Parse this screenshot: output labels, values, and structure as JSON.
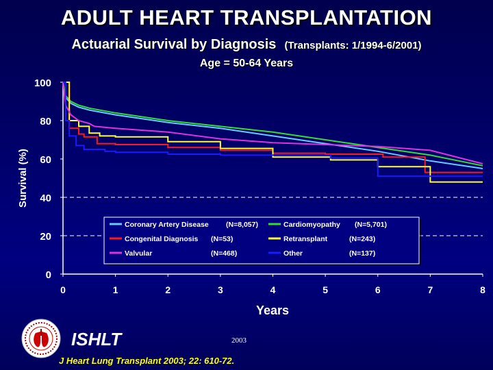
{
  "header": {
    "title": "ADULT HEART TRANSPLANTATION",
    "subtitle": "Actuarial Survival by Diagnosis",
    "subtitle_note": "(Transplants: 1/1994-6/2001)",
    "age": "Age = 50-64 Years"
  },
  "chart_data": {
    "type": "line",
    "title": "Actuarial Survival by Diagnosis",
    "xlabel": "Years",
    "ylabel": "Survival (%)",
    "xlim": [
      0,
      8
    ],
    "ylim": [
      0,
      100
    ],
    "x_ticks": [
      0,
      1,
      2,
      3,
      4,
      5,
      6,
      7,
      8
    ],
    "y_ticks": [
      0,
      20,
      40,
      60,
      80,
      100
    ],
    "grid": "dashed horizontal at 20 and 40",
    "legend_position": "bottom-center",
    "series": [
      {
        "name": "Coronary Artery Disease",
        "n_label": "(N=8,057)",
        "color": "#66ccff",
        "step": false,
        "points": [
          [
            0,
            100
          ],
          [
            0.05,
            92
          ],
          [
            0.15,
            89
          ],
          [
            0.3,
            87
          ],
          [
            0.5,
            85.5
          ],
          [
            1,
            83
          ],
          [
            2,
            79
          ],
          [
            3,
            76
          ],
          [
            4,
            72
          ],
          [
            5,
            68
          ],
          [
            6,
            64
          ],
          [
            7,
            59
          ],
          [
            8,
            55
          ]
        ]
      },
      {
        "name": "Cardiomyopathy",
        "n_label": "(N=5,701)",
        "color": "#33dd33",
        "step": false,
        "points": [
          [
            0,
            100
          ],
          [
            0.05,
            93
          ],
          [
            0.15,
            90
          ],
          [
            0.3,
            88
          ],
          [
            0.5,
            86.5
          ],
          [
            1,
            84
          ],
          [
            2,
            80
          ],
          [
            3,
            77
          ],
          [
            4,
            74
          ],
          [
            5,
            70
          ],
          [
            6,
            66
          ],
          [
            7,
            62
          ],
          [
            8,
            56.5
          ]
        ]
      },
      {
        "name": "Congenital Diagnosis",
        "n_label": "(N=53)",
        "color": "#ff1a1a",
        "step": true,
        "points": [
          [
            0,
            100
          ],
          [
            0.12,
            76
          ],
          [
            0.3,
            73
          ],
          [
            0.4,
            71.5
          ],
          [
            0.65,
            68
          ],
          [
            1,
            67.5
          ],
          [
            2,
            66
          ],
          [
            3,
            64.5
          ],
          [
            4,
            63
          ],
          [
            5,
            62.5
          ],
          [
            6,
            62.5
          ],
          [
            6.1,
            61
          ],
          [
            6.9,
            53
          ],
          [
            8,
            53
          ]
        ]
      },
      {
        "name": "Retransplant",
        "n_label": "(N=243)",
        "color": "#ffff33",
        "step": true,
        "points": [
          [
            0,
            100
          ],
          [
            0.12,
            80
          ],
          [
            0.3,
            77
          ],
          [
            0.5,
            73.5
          ],
          [
            0.7,
            72
          ],
          [
            1,
            71.5
          ],
          [
            2,
            69
          ],
          [
            3,
            65.5
          ],
          [
            4,
            61
          ],
          [
            5,
            61
          ],
          [
            5.1,
            59.5
          ],
          [
            6,
            56
          ],
          [
            7,
            48
          ],
          [
            8,
            48
          ]
        ]
      },
      {
        "name": "Valvular",
        "n_label": "(N=468)",
        "color": "#dd33dd",
        "step": false,
        "points": [
          [
            0,
            100
          ],
          [
            0.05,
            88
          ],
          [
            0.15,
            83
          ],
          [
            0.3,
            80
          ],
          [
            0.5,
            78.5
          ],
          [
            0.6,
            77
          ],
          [
            1,
            76
          ],
          [
            2,
            74
          ],
          [
            3,
            70.5
          ],
          [
            4,
            68.5
          ],
          [
            5,
            67.5
          ],
          [
            6,
            66.5
          ],
          [
            7,
            64.5
          ],
          [
            8,
            57.5
          ]
        ]
      },
      {
        "name": "Other",
        "n_label": "(N=137)",
        "color": "#1a1aff",
        "step": true,
        "points": [
          [
            0,
            100
          ],
          [
            0.05,
            80
          ],
          [
            0.12,
            72
          ],
          [
            0.25,
            67
          ],
          [
            0.4,
            65
          ],
          [
            0.8,
            64
          ],
          [
            1,
            63.5
          ],
          [
            2,
            62.5
          ],
          [
            3,
            62
          ],
          [
            4,
            62
          ],
          [
            5,
            62
          ],
          [
            5.1,
            60.5
          ],
          [
            6,
            51
          ],
          [
            7,
            51
          ],
          [
            8,
            51
          ]
        ]
      }
    ]
  },
  "footer": {
    "org": "ISHLT",
    "year": "2003",
    "citation": "J Heart Lung Transplant 2003; 22: 610-72."
  }
}
